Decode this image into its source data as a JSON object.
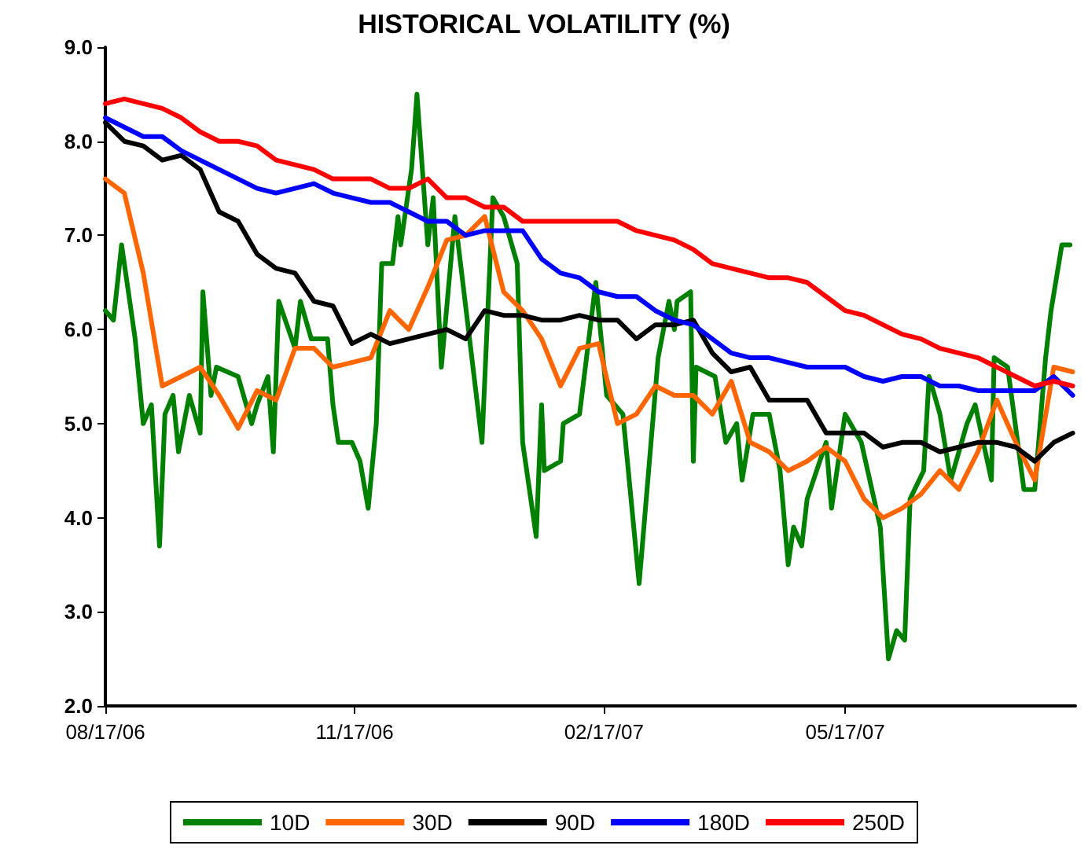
{
  "chart_data": {
    "type": "line",
    "title": "HISTORICAL VOLATILITY (%)",
    "x": [
      "2006-08-17",
      "2006-08-24",
      "2006-08-31",
      "2006-09-07",
      "2006-09-14",
      "2006-09-21",
      "2006-09-28",
      "2006-10-05",
      "2006-10-12",
      "2006-10-19",
      "2006-10-26",
      "2006-11-02",
      "2006-11-09",
      "2006-11-16",
      "2006-11-23",
      "2006-11-30",
      "2006-12-07",
      "2006-12-14",
      "2006-12-21",
      "2006-12-28",
      "2007-01-04",
      "2007-01-11",
      "2007-01-18",
      "2007-01-25",
      "2007-02-01",
      "2007-02-08",
      "2007-02-15",
      "2007-02-22",
      "2007-03-01",
      "2007-03-08",
      "2007-03-15",
      "2007-03-22",
      "2007-03-29",
      "2007-04-05",
      "2007-04-12",
      "2007-04-19",
      "2007-04-26",
      "2007-05-03",
      "2007-05-10",
      "2007-05-17",
      "2007-05-24",
      "2007-05-31",
      "2007-06-07",
      "2007-06-14",
      "2007-06-21",
      "2007-06-28",
      "2007-07-05",
      "2007-07-12",
      "2007-07-19",
      "2007-07-26",
      "2007-08-02",
      "2007-08-09"
    ],
    "series": [
      {
        "name": "10D",
        "color": "#008000",
        "x": [
          "2006-08-17",
          "2006-08-20",
          "2006-08-23",
          "2006-08-28",
          "2006-08-31",
          "2006-09-03",
          "2006-09-06",
          "2006-09-08",
          "2006-09-11",
          "2006-09-13",
          "2006-09-17",
          "2006-09-21",
          "2006-09-22",
          "2006-09-25",
          "2006-09-27",
          "2006-10-05",
          "2006-10-10",
          "2006-10-12",
          "2006-10-16",
          "2006-10-18",
          "2006-10-20",
          "2006-10-26",
          "2006-10-28",
          "2006-11-01",
          "2006-11-07",
          "2006-11-09",
          "2006-11-11",
          "2006-11-16",
          "2006-11-19",
          "2006-11-22",
          "2006-11-25",
          "2006-11-27",
          "2006-12-01",
          "2006-12-03",
          "2006-12-04",
          "2006-12-08",
          "2006-12-10",
          "2006-12-12",
          "2006-12-14",
          "2006-12-16",
          "2006-12-19",
          "2006-12-24",
          "2007-01-03",
          "2007-01-07",
          "2007-01-11",
          "2007-01-16",
          "2007-01-18",
          "2007-01-23",
          "2007-01-25",
          "2007-01-26",
          "2007-02-01",
          "2007-02-02",
          "2007-02-08",
          "2007-02-14",
          "2007-02-18",
          "2007-02-24",
          "2007-03-02",
          "2007-03-09",
          "2007-03-13",
          "2007-03-15",
          "2007-03-16",
          "2007-03-21",
          "2007-03-22",
          "2007-03-23",
          "2007-03-30",
          "2007-04-03",
          "2007-04-07",
          "2007-04-09",
          "2007-04-13",
          "2007-04-19",
          "2007-04-23",
          "2007-04-26",
          "2007-04-28",
          "2007-05-01",
          "2007-05-03",
          "2007-05-10",
          "2007-05-12",
          "2007-05-17",
          "2007-05-23",
          "2007-05-30",
          "2007-06-02",
          "2007-06-05",
          "2007-06-08",
          "2007-06-10",
          "2007-06-15",
          "2007-06-17",
          "2007-06-21",
          "2007-06-25",
          "2007-07-01",
          "2007-07-04",
          "2007-07-10",
          "2007-07-11",
          "2007-07-16",
          "2007-07-22",
          "2007-07-26",
          "2007-07-30",
          "2007-08-01",
          "2007-08-05",
          "2007-08-08"
        ],
        "values": [
          6.2,
          6.1,
          6.9,
          5.9,
          5.0,
          5.2,
          3.7,
          5.1,
          5.3,
          4.7,
          5.3,
          4.9,
          6.4,
          5.3,
          5.6,
          5.5,
          5.0,
          5.2,
          5.5,
          4.7,
          6.3,
          5.8,
          6.3,
          5.9,
          5.9,
          5.2,
          4.8,
          4.8,
          4.6,
          4.1,
          5.0,
          6.7,
          6.7,
          7.2,
          6.9,
          7.7,
          8.5,
          7.7,
          6.9,
          7.4,
          5.6,
          7.2,
          4.8,
          7.4,
          7.2,
          6.7,
          4.8,
          3.8,
          5.2,
          4.5,
          4.6,
          5.0,
          5.1,
          6.5,
          5.3,
          5.1,
          3.3,
          5.7,
          6.3,
          6.0,
          6.3,
          6.4,
          4.6,
          5.6,
          5.5,
          4.8,
          5.0,
          4.4,
          5.1,
          5.1,
          4.5,
          3.5,
          3.9,
          3.7,
          4.2,
          4.8,
          4.1,
          5.1,
          4.8,
          3.9,
          2.5,
          2.8,
          2.7,
          4.2,
          4.5,
          5.5,
          5.1,
          4.4,
          5.0,
          5.2,
          4.4,
          5.7,
          5.6,
          4.3,
          4.3,
          5.7,
          6.2,
          6.9,
          6.9
        ]
      },
      {
        "name": "30D",
        "color": "#ff6600",
        "values": [
          7.6,
          7.45,
          6.6,
          5.4,
          5.5,
          5.6,
          5.3,
          4.95,
          5.35,
          5.25,
          5.8,
          5.8,
          5.6,
          5.65,
          5.7,
          6.2,
          6.0,
          6.45,
          6.95,
          7.0,
          7.2,
          6.4,
          6.2,
          5.9,
          5.4,
          5.8,
          5.85,
          5.0,
          5.1,
          5.4,
          5.3,
          5.3,
          5.1,
          5.45,
          4.8,
          4.7,
          4.5,
          4.6,
          4.75,
          4.6,
          4.2,
          4.0,
          4.1,
          4.25,
          4.5,
          4.3,
          4.7,
          5.25,
          4.8,
          4.4,
          5.6,
          5.55
        ]
      },
      {
        "name": "90D",
        "color": "#000000",
        "values": [
          8.2,
          8.0,
          7.95,
          7.8,
          7.85,
          7.7,
          7.25,
          7.15,
          6.8,
          6.65,
          6.6,
          6.3,
          6.25,
          5.85,
          5.95,
          5.85,
          5.9,
          5.95,
          6.0,
          5.9,
          6.2,
          6.15,
          6.15,
          6.1,
          6.1,
          6.15,
          6.1,
          6.1,
          5.9,
          6.05,
          6.05,
          6.1,
          5.75,
          5.55,
          5.6,
          5.25,
          5.25,
          5.25,
          4.9,
          4.9,
          4.9,
          4.75,
          4.8,
          4.8,
          4.7,
          4.75,
          4.8,
          4.8,
          4.75,
          4.6,
          4.8,
          4.9
        ]
      },
      {
        "name": "180D",
        "color": "#0000ff",
        "values": [
          8.25,
          8.15,
          8.05,
          8.05,
          7.9,
          7.8,
          7.7,
          7.6,
          7.5,
          7.45,
          7.5,
          7.55,
          7.45,
          7.4,
          7.35,
          7.35,
          7.25,
          7.15,
          7.15,
          7.0,
          7.05,
          7.05,
          7.05,
          6.75,
          6.6,
          6.55,
          6.4,
          6.35,
          6.35,
          6.2,
          6.1,
          6.05,
          5.9,
          5.75,
          5.7,
          5.7,
          5.65,
          5.6,
          5.6,
          5.6,
          5.5,
          5.45,
          5.5,
          5.5,
          5.4,
          5.4,
          5.35,
          5.35,
          5.35,
          5.35,
          5.5,
          5.3
        ]
      },
      {
        "name": "250D",
        "color": "#ff0000",
        "values": [
          8.4,
          8.45,
          8.4,
          8.35,
          8.25,
          8.1,
          8.0,
          8.0,
          7.95,
          7.8,
          7.75,
          7.7,
          7.6,
          7.6,
          7.6,
          7.5,
          7.5,
          7.6,
          7.4,
          7.4,
          7.3,
          7.3,
          7.15,
          7.15,
          7.15,
          7.15,
          7.15,
          7.15,
          7.05,
          7.0,
          6.95,
          6.85,
          6.7,
          6.65,
          6.6,
          6.55,
          6.55,
          6.5,
          6.35,
          6.2,
          6.15,
          6.05,
          5.95,
          5.9,
          5.8,
          5.75,
          5.7,
          5.6,
          5.5,
          5.4,
          5.45,
          5.4
        ]
      }
    ],
    "xlim": [
      "2006-08-17",
      "2007-08-10"
    ],
    "xticks": [
      {
        "value": "2006-08-17",
        "label": "08/17/06"
      },
      {
        "value": "2006-11-17",
        "label": "11/17/06"
      },
      {
        "value": "2007-02-17",
        "label": "02/17/07"
      },
      {
        "value": "2007-05-17",
        "label": "05/17/07"
      }
    ],
    "ylim": [
      2,
      9
    ],
    "yticks": [
      {
        "value": 2,
        "label": "2.0"
      },
      {
        "value": 3,
        "label": "3.0"
      },
      {
        "value": 4,
        "label": "4.0"
      },
      {
        "value": 5,
        "label": "5.0"
      },
      {
        "value": 6,
        "label": "6.0"
      },
      {
        "value": 7,
        "label": "7.0"
      },
      {
        "value": 8,
        "label": "8.0"
      },
      {
        "value": 9,
        "label": "9.0"
      }
    ],
    "grid": false,
    "legend": "bottom",
    "marker": "none",
    "line_style": "solid"
  }
}
